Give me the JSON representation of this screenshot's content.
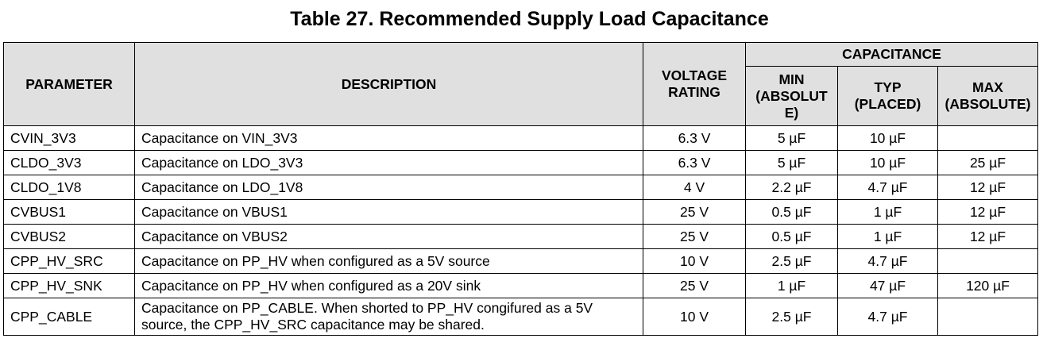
{
  "title": "Table 27. Recommended Supply Load Capacitance",
  "headers": {
    "parameter": "PARAMETER",
    "description": "DESCRIPTION",
    "voltage_rating": "VOLTAGE RATING",
    "capacitance": "CAPACITANCE",
    "min": "MIN (ABSOLUT E)",
    "typ": "TYP (PLACED)",
    "max": "MAX (ABSOLUTE)"
  },
  "rows": [
    {
      "parameter": "CVIN_3V3",
      "description": "Capacitance on VIN_3V3",
      "voltage": "6.3 V",
      "min": "5 µF",
      "typ": "10 µF",
      "max": ""
    },
    {
      "parameter": "CLDO_3V3",
      "description": "Capacitance on LDO_3V3",
      "voltage": "6.3 V",
      "min": "5 µF",
      "typ": "10 µF",
      "max": "25 µF"
    },
    {
      "parameter": "CLDO_1V8",
      "description": "Capacitance on LDO_1V8",
      "voltage": "4 V",
      "min": "2.2 µF",
      "typ": "4.7 µF",
      "max": "12 µF"
    },
    {
      "parameter": "CVBUS1",
      "description": "Capacitance on VBUS1",
      "voltage": "25 V",
      "min": "0.5 µF",
      "typ": "1 µF",
      "max": "12 µF"
    },
    {
      "parameter": "CVBUS2",
      "description": "Capacitance on VBUS2",
      "voltage": "25 V",
      "min": "0.5 µF",
      "typ": "1 µF",
      "max": "12 µF"
    },
    {
      "parameter": "CPP_HV_SRC",
      "description": "Capacitance on PP_HV when configured as a 5V source",
      "voltage": "10 V",
      "min": "2.5 µF",
      "typ": "4.7 µF",
      "max": ""
    },
    {
      "parameter": "CPP_HV_SNK",
      "description": "Capacitance on PP_HV when configured as a 20V sink",
      "voltage": "25 V",
      "min": "1 µF",
      "typ": "47 µF",
      "max": "120 µF"
    },
    {
      "parameter": "CPP_CABLE",
      "description": "Capacitance on PP_CABLE. When shorted to PP_HV congifured as a 5V source, the CPP_HV_SRC capacitance may be shared.",
      "voltage": "10 V",
      "min": "2.5 µF",
      "typ": "4.7 µF",
      "max": ""
    }
  ]
}
